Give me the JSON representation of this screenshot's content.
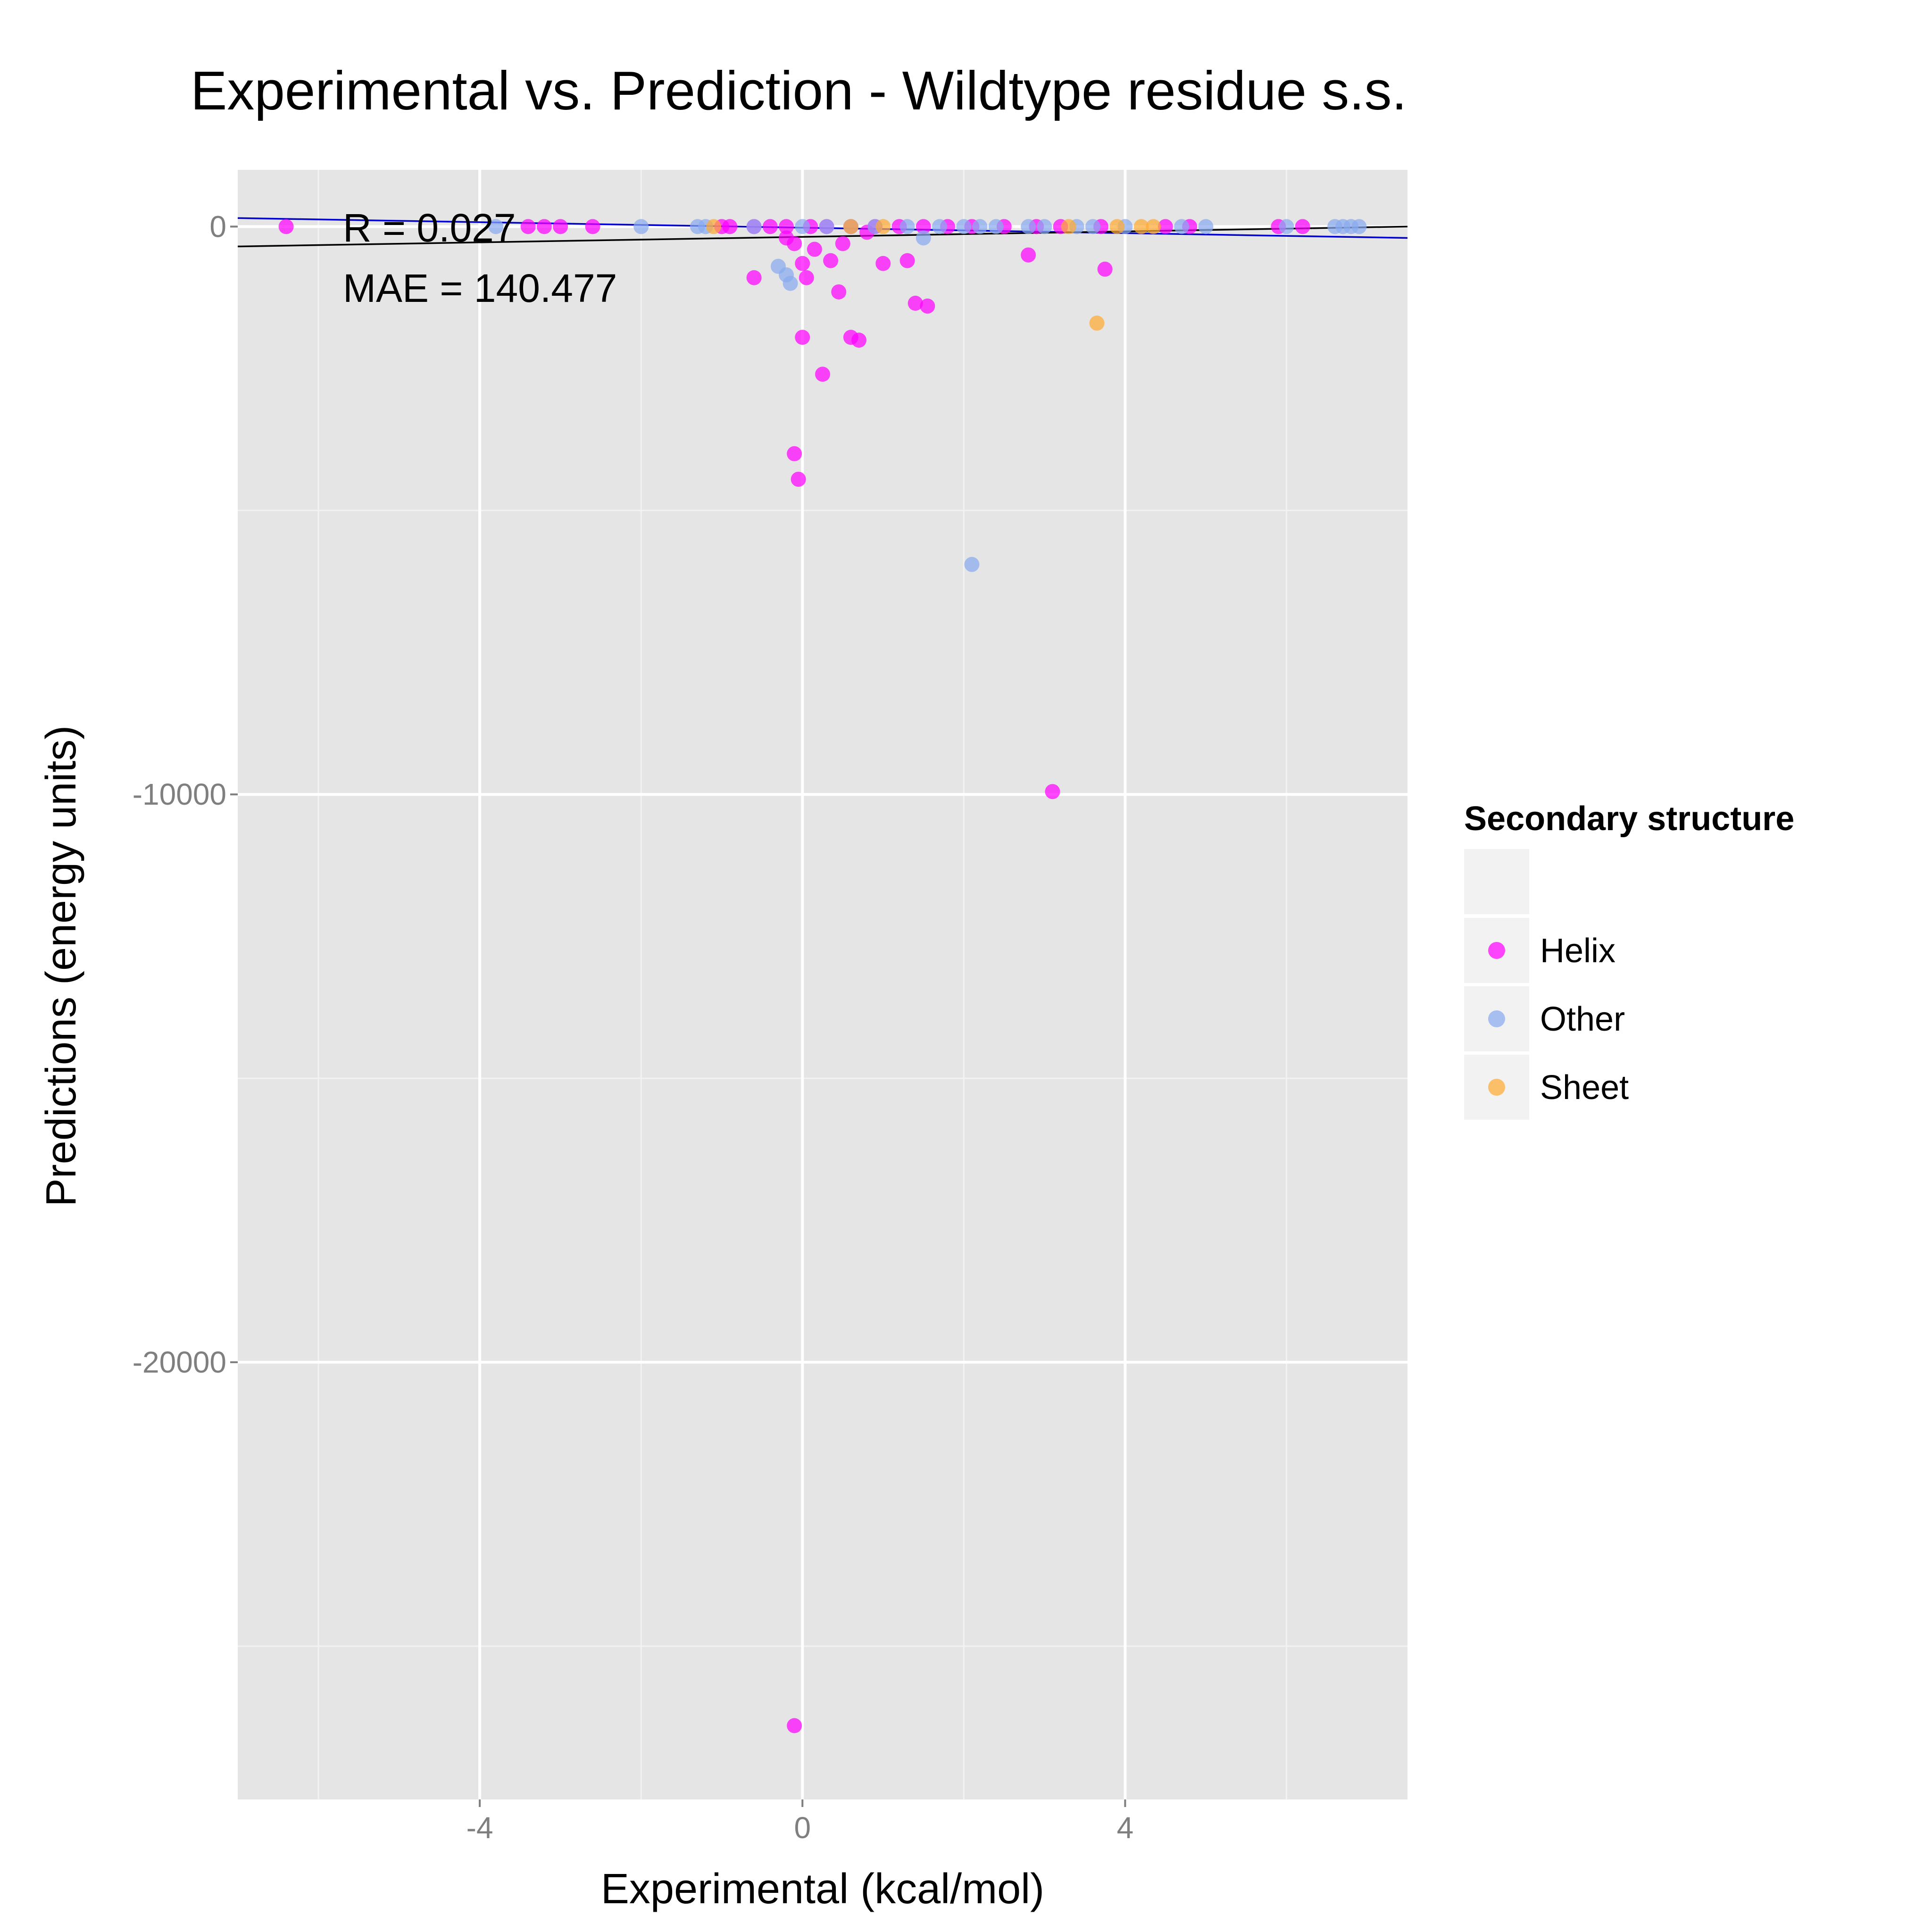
{
  "chart_data": {
    "type": "scatter",
    "title": "Experimental vs. Prediction - Wildtype residue s.s.",
    "xlabel": "Experimental (kcal/mol)",
    "ylabel": "Predictions (energy units)",
    "xlim": [
      -7.0,
      7.5
    ],
    "ylim": [
      -27700,
      1000
    ],
    "x_ticks": [
      -4,
      0,
      4
    ],
    "x_minor_ticks": [
      -6,
      -2,
      2,
      6
    ],
    "y_ticks": [
      0,
      -10000,
      -20000
    ],
    "y_minor_ticks": [
      -5000,
      -15000,
      -25000
    ],
    "grid": true,
    "legend": {
      "title": "Secondary structure",
      "placement": "right"
    },
    "annotations": [
      "R = 0.027",
      "MAE = 140.477"
    ],
    "trend_lines": [
      {
        "color": "#0000cc",
        "x": [
          -7.0,
          7.5
        ],
        "y": [
          150,
          -200
        ]
      },
      {
        "color": "#000000",
        "x": [
          -7.0,
          7.5
        ],
        "y": [
          -350,
          0
        ]
      }
    ],
    "series": [
      {
        "name": "Helix",
        "color": "#ff00ff",
        "x": [
          -6.4,
          -3.4,
          -3.2,
          -3.0,
          -2.6,
          -1.0,
          -0.9,
          -0.6,
          -0.4,
          -0.2,
          0.1,
          0.3,
          0.6,
          0.9,
          1.2,
          1.5,
          1.8,
          2.1,
          2.5,
          2.9,
          3.2,
          3.7,
          4.5,
          4.8,
          5.9,
          6.2,
          -0.6,
          -0.2,
          -0.1,
          0.0,
          0.05,
          0.15,
          0.35,
          0.45,
          0.5,
          0.8,
          1.0,
          1.3,
          2.8,
          3.75,
          1.4,
          1.55,
          0.0,
          0.6,
          0.7,
          0.25,
          -0.1,
          -0.05,
          3.1,
          -0.1
        ],
        "y": [
          0,
          0,
          0,
          0,
          0,
          0,
          0,
          0,
          0,
          0,
          0,
          0,
          0,
          0,
          0,
          0,
          0,
          0,
          0,
          0,
          0,
          0,
          0,
          0,
          0,
          0,
          -900,
          -200,
          -300,
          -650,
          -900,
          -400,
          -600,
          -1150,
          -300,
          -100,
          -650,
          -600,
          -500,
          -750,
          -1350,
          -1400,
          -1950,
          -1950,
          -2000,
          -2600,
          -4000,
          -4450,
          -9950,
          -26400
        ]
      },
      {
        "name": "Other",
        "color": "#88aaee",
        "x": [
          -3.8,
          -2.0,
          -1.3,
          -1.2,
          -0.6,
          0.0,
          0.3,
          0.6,
          0.9,
          1.3,
          1.7,
          2.0,
          2.2,
          2.4,
          2.8,
          3.0,
          3.4,
          3.6,
          4.0,
          4.7,
          5.0,
          6.0,
          6.6,
          6.7,
          6.8,
          6.9,
          -0.3,
          -0.2,
          -0.15,
          1.5,
          2.1
        ],
        "y": [
          0,
          0,
          0,
          0,
          0,
          0,
          0,
          0,
          0,
          0,
          0,
          0,
          0,
          0,
          0,
          0,
          0,
          0,
          0,
          0,
          0,
          0,
          0,
          0,
          0,
          0,
          -700,
          -850,
          -1000,
          -200,
          -5950
        ]
      },
      {
        "name": "Sheet",
        "color": "#ffaa33",
        "x": [
          -1.1,
          0.6,
          1.0,
          3.3,
          3.9,
          4.2,
          4.35,
          3.65
        ],
        "y": [
          0,
          0,
          0,
          0,
          0,
          0,
          0,
          -1700
        ]
      }
    ]
  }
}
